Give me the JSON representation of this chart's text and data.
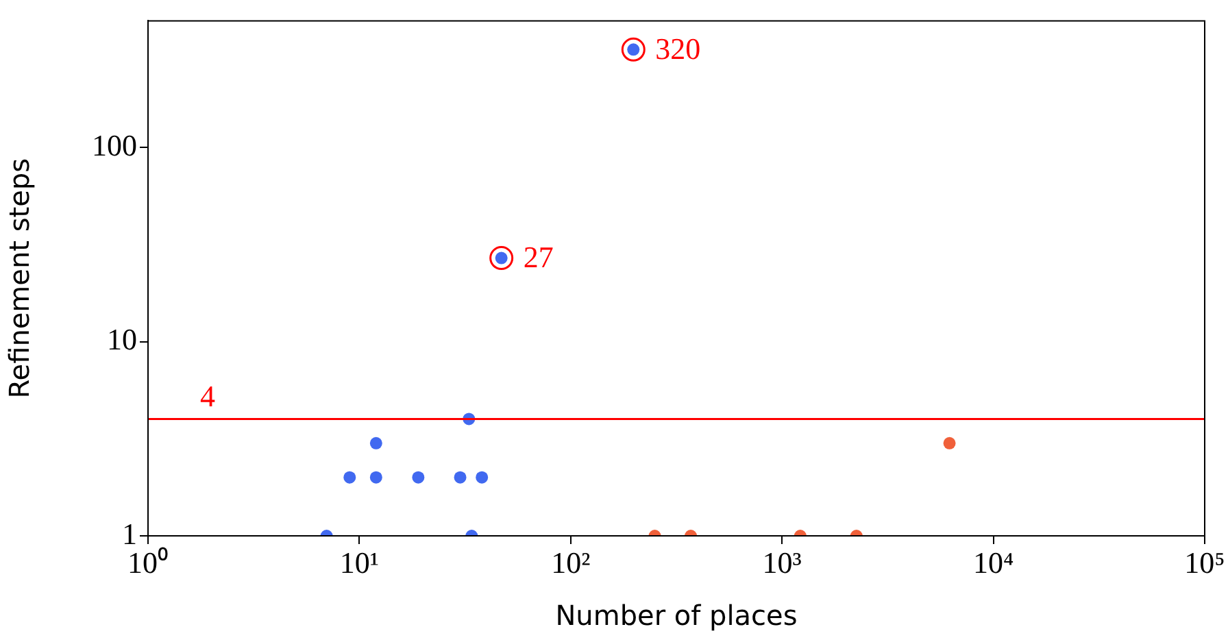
{
  "chart_data": {
    "type": "scatter",
    "xlabel": "Number of places",
    "ylabel": "Refinement steps",
    "log": "xy",
    "grid": false,
    "legend": false,
    "marker": "circle",
    "xlim": [
      1,
      100000
    ],
    "xticks": [
      {
        "value": 1,
        "label": "10⁰"
      },
      {
        "value": 10,
        "label": "10¹"
      },
      {
        "value": 100,
        "label": "10²"
      },
      {
        "value": 1000,
        "label": "10³"
      },
      {
        "value": 10000,
        "label": "10⁴"
      },
      {
        "value": 100000,
        "label": "10⁵"
      }
    ],
    "ylim": [
      1,
      450
    ],
    "yticks": [
      1,
      10,
      100
    ],
    "series": [
      {
        "color": "#4169f0",
        "x": [
          7,
          9,
          12,
          12,
          19,
          30,
          33,
          34,
          38,
          47,
          198
        ],
        "values": [
          1,
          2,
          3,
          2,
          2,
          2,
          4,
          1,
          2,
          27,
          320
        ]
      },
      {
        "color": "#f0603a",
        "x": [
          250,
          370,
          1220,
          2250,
          6200
        ],
        "values": [
          1,
          1,
          1,
          1,
          3
        ]
      }
    ],
    "ref_lines": [
      {
        "axis": "y",
        "value": 4,
        "label": "4",
        "color": "#ff0000"
      }
    ],
    "annotations": [
      {
        "text": "27",
        "x": 47,
        "y": 27
      },
      {
        "text": "320",
        "x": 198,
        "y": 320
      }
    ]
  }
}
